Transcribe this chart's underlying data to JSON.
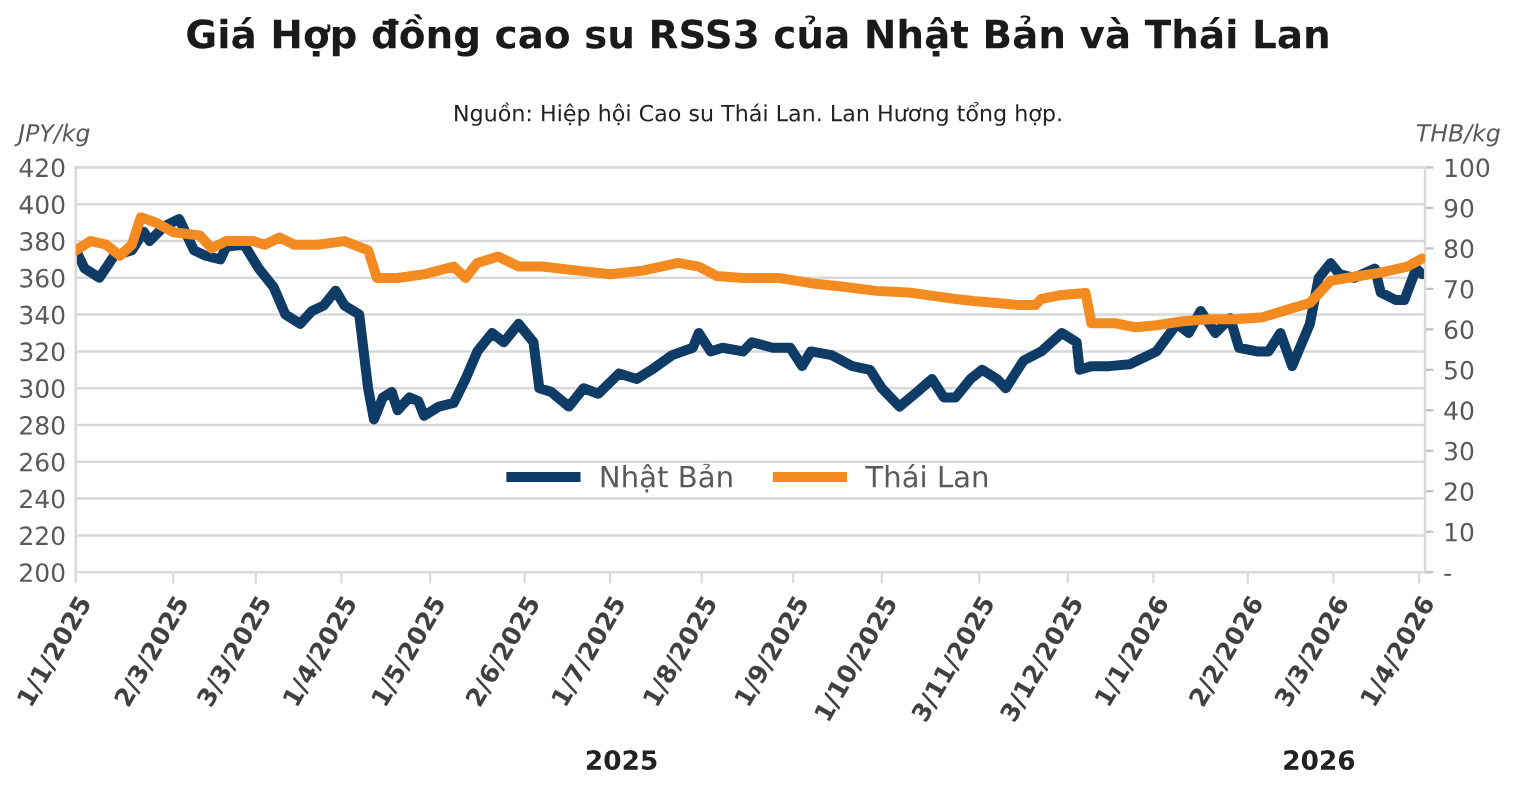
{
  "chart_data": {
    "type": "line",
    "title": "Giá Hợp đồng cao su RSS3 của Nhật Bản và Thái Lan",
    "annotations": [
      "Nguồn: Hiệp hội Cao su Thái Lan. Lan Hương tổng hợp.",
      "2025",
      "2026"
    ],
    "ylabel": "JPY/kg",
    "y2label": "THB/kg",
    "series": [
      {
        "name": "Nhật Bản",
        "color": "#0e3c66",
        "x": [
          "2025-01-01",
          "2025-01-04",
          "2025-01-09",
          "2025-01-14",
          "2025-01-20",
          "2025-01-24",
          "2025-01-26",
          "2025-01-31",
          "2025-02-05",
          "2025-02-10",
          "2025-02-14",
          "2025-02-19",
          "2025-02-21",
          "2025-02-27",
          "2025-03-04",
          "2025-03-09",
          "2025-03-13",
          "2025-03-18",
          "2025-03-22",
          "2025-03-26",
          "2025-03-30",
          "2025-04-02",
          "2025-04-07",
          "2025-04-10",
          "2025-04-12",
          "2025-04-15",
          "2025-04-18",
          "2025-04-20",
          "2025-04-24",
          "2025-04-27",
          "2025-04-29",
          "2025-05-04",
          "2025-05-09",
          "2025-05-13",
          "2025-05-17",
          "2025-05-22",
          "2025-05-26",
          "2025-05-31",
          "2025-06-05",
          "2025-06-07",
          "2025-06-11",
          "2025-06-17",
          "2025-06-22",
          "2025-06-27",
          "2025-07-04",
          "2025-07-10",
          "2025-07-15",
          "2025-07-22",
          "2025-07-29",
          "2025-07-31",
          "2025-08-04",
          "2025-08-08",
          "2025-08-15",
          "2025-08-18",
          "2025-08-25",
          "2025-08-31",
          "2025-09-04",
          "2025-09-07",
          "2025-09-14",
          "2025-09-21",
          "2025-09-27",
          "2025-10-01",
          "2025-10-07",
          "2025-10-13",
          "2025-10-18",
          "2025-10-22",
          "2025-10-26",
          "2025-10-31",
          "2025-11-04",
          "2025-11-09",
          "2025-11-12",
          "2025-11-18",
          "2025-11-24",
          "2025-12-01",
          "2025-12-06",
          "2025-12-07",
          "2025-12-11",
          "2025-12-17",
          "2025-12-24",
          "2026-01-02",
          "2026-01-09",
          "2026-01-13",
          "2026-01-17",
          "2026-01-22",
          "2026-01-27",
          "2026-01-30",
          "2026-02-05",
          "2026-02-09",
          "2026-02-13",
          "2026-02-17",
          "2026-02-23",
          "2026-02-26",
          "2026-03-02",
          "2026-03-05",
          "2026-03-10",
          "2026-03-17",
          "2026-03-19",
          "2026-03-24",
          "2026-03-27",
          "2026-03-31",
          "2026-04-02"
        ],
        "values": [
          375,
          365,
          360,
          372,
          375,
          385,
          380,
          388,
          392,
          375,
          372,
          370,
          377,
          378,
          365,
          355,
          340,
          335,
          342,
          345,
          353,
          345,
          340,
          300,
          283,
          295,
          298,
          288,
          295,
          293,
          285,
          290,
          292,
          305,
          320,
          330,
          325,
          335,
          325,
          300,
          298,
          290,
          300,
          297,
          308,
          305,
          310,
          318,
          322,
          330,
          320,
          322,
          320,
          325,
          322,
          322,
          312,
          320,
          318,
          312,
          310,
          300,
          290,
          298,
          305,
          295,
          295,
          305,
          310,
          305,
          300,
          315,
          320,
          330,
          325,
          310,
          312,
          312,
          313,
          320,
          335,
          330,
          342,
          330,
          338,
          322,
          320,
          320,
          330,
          312,
          335,
          360,
          368,
          362,
          360,
          365,
          352,
          348,
          348,
          365,
          362
        ]
      },
      {
        "name": "Thái Lan",
        "color": "#f38b21",
        "axis": "y2",
        "x": [
          "2025-01-01",
          "2025-01-06",
          "2025-01-11",
          "2025-01-16",
          "2025-01-20",
          "2025-01-23",
          "2025-01-28",
          "2025-02-03",
          "2025-02-12",
          "2025-02-16",
          "2025-02-21",
          "2025-03-02",
          "2025-03-06",
          "2025-03-11",
          "2025-03-16",
          "2025-03-24",
          "2025-04-02",
          "2025-04-10",
          "2025-04-13",
          "2025-04-20",
          "2025-04-29",
          "2025-05-09",
          "2025-05-13",
          "2025-05-17",
          "2025-05-24",
          "2025-05-31",
          "2025-06-08",
          "2025-06-20",
          "2025-07-01",
          "2025-07-12",
          "2025-07-24",
          "2025-07-31",
          "2025-08-06",
          "2025-08-15",
          "2025-08-27",
          "2025-09-07",
          "2025-09-18",
          "2025-09-29",
          "2025-10-10",
          "2025-10-19",
          "2025-10-26",
          "2025-11-01",
          "2025-11-09",
          "2025-11-16",
          "2025-11-22",
          "2025-11-24",
          "2025-12-01",
          "2025-12-09",
          "2025-12-11",
          "2025-12-19",
          "2025-12-26",
          "2026-01-02",
          "2026-01-11",
          "2026-01-20",
          "2026-01-29",
          "2026-02-07",
          "2026-02-16",
          "2026-02-23",
          "2026-03-02",
          "2026-03-10",
          "2026-03-19",
          "2026-03-28",
          "2026-04-02"
        ],
        "values": [
          79.5,
          81.8,
          81,
          78.2,
          80.9,
          87.7,
          86.4,
          84,
          83.2,
          80,
          81.8,
          81.8,
          80.9,
          82.7,
          80.9,
          80.9,
          81.8,
          79.5,
          72.7,
          72.7,
          73.6,
          75.5,
          72.7,
          76.4,
          78,
          75.5,
          75.5,
          74.5,
          73.6,
          74.5,
          76.4,
          75.5,
          73.2,
          72.7,
          72.7,
          71.4,
          70.5,
          69.5,
          69.1,
          68.2,
          67.5,
          67,
          66.5,
          66,
          66,
          67.5,
          68.5,
          69,
          61.5,
          61.5,
          60.5,
          61,
          62,
          62.5,
          62.5,
          63,
          65,
          66.5,
          72,
          73,
          74,
          75.5,
          77.5
        ]
      }
    ],
    "xlim": [
      "2025-01-01",
      "2026-04-03"
    ],
    "xticks": [
      {
        "value": "2025-01-01",
        "label": "1/1/2025"
      },
      {
        "value": "2025-02-03",
        "label": "2/3/2025"
      },
      {
        "value": "2025-03-03",
        "label": "3/3/2025"
      },
      {
        "value": "2025-04-01",
        "label": "1/4/2025"
      },
      {
        "value": "2025-05-01",
        "label": "1/5/2025"
      },
      {
        "value": "2025-06-02",
        "label": "2/6/2025"
      },
      {
        "value": "2025-07-01",
        "label": "1/7/2025"
      },
      {
        "value": "2025-08-01",
        "label": "1/8/2025"
      },
      {
        "value": "2025-09-01",
        "label": "1/9/2025"
      },
      {
        "value": "2025-10-01",
        "label": "1/10/2025"
      },
      {
        "value": "2025-11-03",
        "label": "3/11/2025"
      },
      {
        "value": "2025-12-03",
        "label": "3/12/2025"
      },
      {
        "value": "2026-01-01",
        "label": "1/1/2026"
      },
      {
        "value": "2026-02-02",
        "label": "2/2/2026"
      },
      {
        "value": "2026-03-03",
        "label": "3/3/2026"
      },
      {
        "value": "2026-04-01",
        "label": "1/4/2026"
      }
    ],
    "ylim": [
      200,
      420
    ],
    "yticks": [
      200,
      220,
      240,
      260,
      280,
      300,
      320,
      340,
      360,
      380,
      400,
      420
    ],
    "y2lim": [
      0,
      100
    ],
    "y2ticks": [
      {
        "value": 0,
        "label": "-"
      },
      10,
      20,
      30,
      40,
      50,
      60,
      70,
      80,
      90,
      100
    ],
    "grid": "y",
    "legend": "bottom",
    "line_style": "solid",
    "marker": "none"
  }
}
